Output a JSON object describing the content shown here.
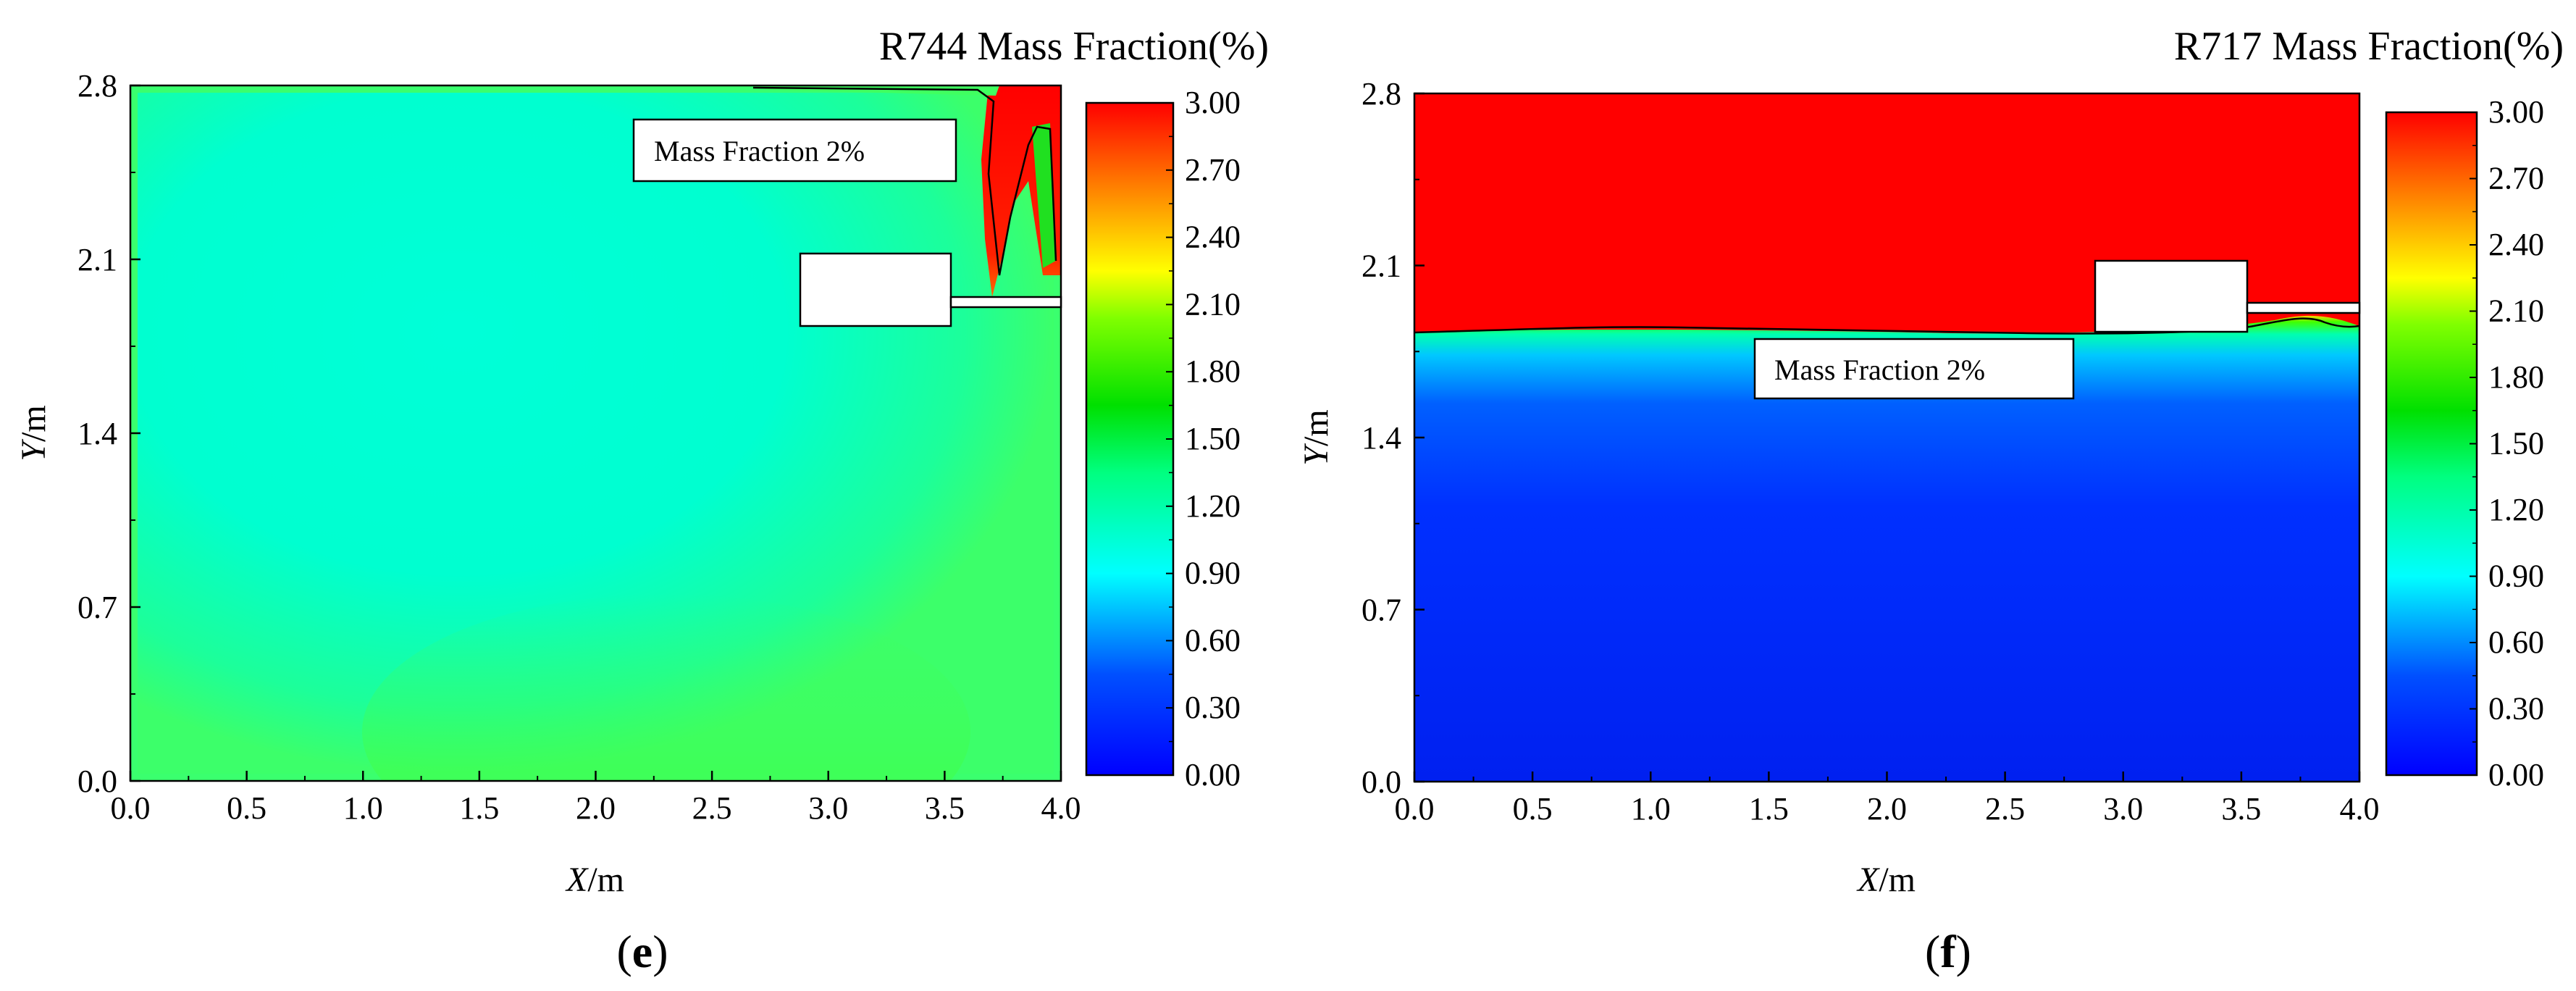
{
  "chart_data": [
    {
      "type": "heatmap",
      "panel_label": "(e)",
      "panel_letter": "e",
      "title": "R744 Mass Fraction(%)",
      "xlabel_var": "X",
      "xlabel_unit": "/m",
      "ylabel_var": "Y",
      "ylabel_unit": "/m",
      "xlim": [
        0.0,
        4.0
      ],
      "ylim": [
        0.0,
        2.8
      ],
      "x_ticks": [
        "0.0",
        "0.5",
        "1.0",
        "1.5",
        "2.0",
        "2.5",
        "3.0",
        "3.5",
        "4.0"
      ],
      "y_ticks": [
        "0.0",
        "0.7",
        "1.4",
        "2.1",
        "2.8"
      ],
      "colorbar": {
        "range": [
          0.0,
          3.0
        ],
        "ticks": [
          "0.00",
          "0.30",
          "0.60",
          "0.90",
          "1.20",
          "1.50",
          "1.80",
          "2.10",
          "2.40",
          "2.70",
          "3.00"
        ]
      },
      "annotation": "Mass Fraction 2%",
      "field_summary": "Mostly 0.9–1.5% throughout the room; plume above 3% near x≈3.7–4.0 m at the ceiling"
    },
    {
      "type": "heatmap",
      "panel_label": "(f)",
      "panel_letter": "f",
      "title": "R717 Mass Fraction(%)",
      "xlabel_var": "X",
      "xlabel_unit": "/m",
      "ylabel_var": "Y",
      "ylabel_unit": "/m",
      "xlim": [
        0.0,
        4.0
      ],
      "ylim": [
        0.0,
        2.8
      ],
      "x_ticks": [
        "0.0",
        "0.5",
        "1.0",
        "1.5",
        "2.0",
        "2.5",
        "3.0",
        "3.5",
        "4.0"
      ],
      "y_ticks": [
        "0.0",
        "0.7",
        "1.4",
        "2.1",
        "2.8"
      ],
      "colorbar": {
        "range": [
          0.0,
          3.0
        ],
        "ticks": [
          "0.00",
          "0.30",
          "0.60",
          "0.90",
          "1.20",
          "1.50",
          "1.80",
          "2.10",
          "2.40",
          "2.70",
          "3.00"
        ]
      },
      "annotation": "Mass Fraction 2%",
      "field_summary": "Above ~1.85 m concentration exceeds 3%; sharp layer near 1.8 m; below is near 0%"
    }
  ]
}
